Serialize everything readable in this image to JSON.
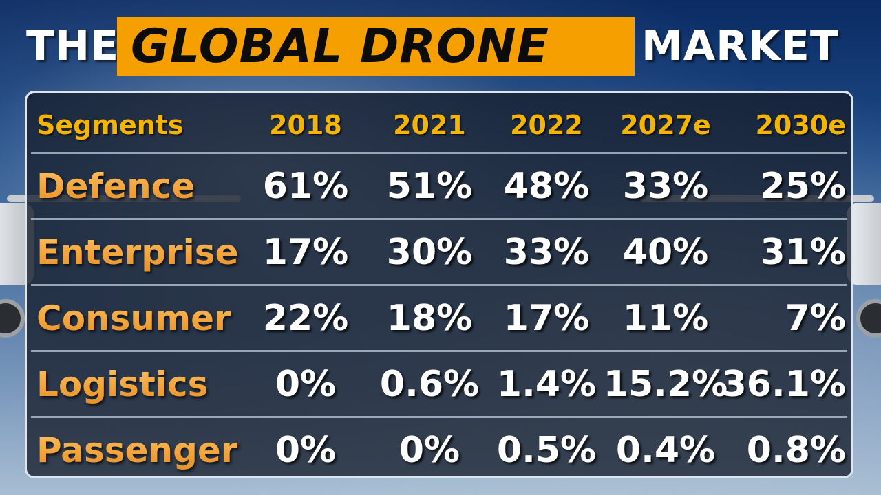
{
  "title": {
    "prefix": "THE",
    "highlight": "GLOBAL DRONE",
    "suffix": "MARKET"
  },
  "colors": {
    "highlight_box": "#f5a000",
    "header_text": "#f5b400",
    "segment_text": "#f3a33a",
    "value_text": "#ffffff"
  },
  "chart_data": {
    "type": "table",
    "title": "THE GLOBAL DRONE MARKET",
    "columns": [
      "Segments",
      "2018",
      "2021",
      "2022",
      "2027e",
      "2030e"
    ],
    "rows": [
      {
        "segment": "Defence",
        "values": [
          "61%",
          "51%",
          "48%",
          "33%",
          "25%"
        ]
      },
      {
        "segment": "Enterprise",
        "values": [
          "17%",
          "30%",
          "33%",
          "40%",
          "31%"
        ]
      },
      {
        "segment": "Consumer",
        "values": [
          "22%",
          "18%",
          "17%",
          "11%",
          "7%"
        ]
      },
      {
        "segment": "Logistics",
        "values": [
          "0%",
          "0.6%",
          "1.4%",
          "15.2%",
          "36.1%"
        ]
      },
      {
        "segment": "Passenger",
        "values": [
          "0%",
          "0%",
          "0.5%",
          "0.4%",
          "0.8%"
        ]
      }
    ]
  }
}
